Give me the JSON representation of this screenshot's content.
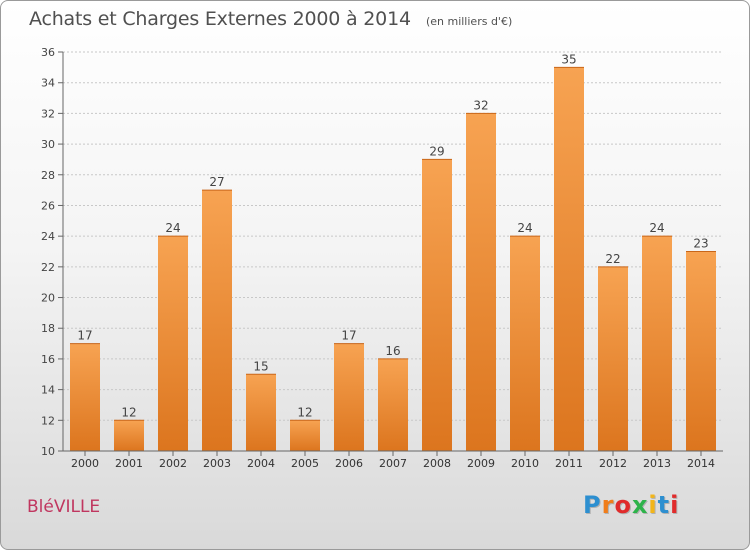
{
  "header": {
    "title": "Achats et Charges Externes 2000 à 2014",
    "unit": "(en milliers d'€)"
  },
  "footer": {
    "place": "BléVILLE",
    "brand": "Proxiti",
    "brand_colors": [
      "#2d8fd0",
      "#f07d1a",
      "#e02b2b",
      "#2db34a",
      "#f2b51a",
      "#2d8fd0",
      "#e02b2b"
    ]
  },
  "chart_data": {
    "type": "bar",
    "title": "Achats et Charges Externes 2000 à 2014",
    "categories": [
      "2000",
      "2001",
      "2002",
      "2003",
      "2004",
      "2005",
      "2006",
      "2007",
      "2008",
      "2009",
      "2010",
      "2011",
      "2012",
      "2013",
      "2014"
    ],
    "values": [
      17,
      12,
      24,
      27,
      15,
      12,
      17,
      16,
      29,
      32,
      24,
      35,
      22,
      24,
      23
    ],
    "ylim": [
      10,
      36
    ],
    "yticks": [
      10,
      12,
      14,
      16,
      18,
      20,
      22,
      24,
      26,
      28,
      30,
      32,
      34,
      36
    ],
    "grid": true,
    "bar_color": "#f0913a",
    "bar_color_dark": "#d9731c"
  }
}
